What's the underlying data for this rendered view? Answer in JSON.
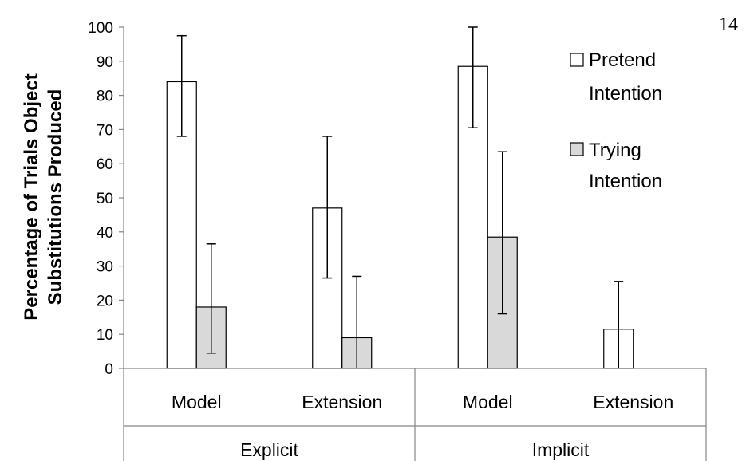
{
  "page_number": "14",
  "chart_data": {
    "type": "bar",
    "ylabel_lines": [
      "Percentage of Trials Object",
      "Substitutions Produced"
    ],
    "ylim": [
      0,
      100
    ],
    "yticks": [
      0,
      10,
      20,
      30,
      40,
      50,
      60,
      70,
      80,
      90,
      100
    ],
    "categories": [
      "Model",
      "Extension",
      "Model",
      "Extension"
    ],
    "groups": [
      {
        "label": "Explicit",
        "span": [
          0,
          1
        ]
      },
      {
        "label": "Implicit",
        "span": [
          2,
          3
        ]
      }
    ],
    "series": [
      {
        "name_lines": [
          "Pretend",
          "Intention"
        ],
        "color": "#ffffff",
        "values": [
          84,
          47,
          88.5,
          11.5
        ],
        "err_low": [
          68,
          26.5,
          70.5,
          0
        ],
        "err_high": [
          97.5,
          68,
          100,
          25.5
        ]
      },
      {
        "name_lines": [
          "Trying",
          "Intention"
        ],
        "color": "#d9d9d9",
        "values": [
          18,
          9,
          38.5,
          0
        ],
        "err_low": [
          4.5,
          0,
          16,
          null
        ],
        "err_high": [
          36.5,
          27,
          63.5,
          null
        ]
      }
    ],
    "legend_position": "top-right",
    "grid": false
  }
}
